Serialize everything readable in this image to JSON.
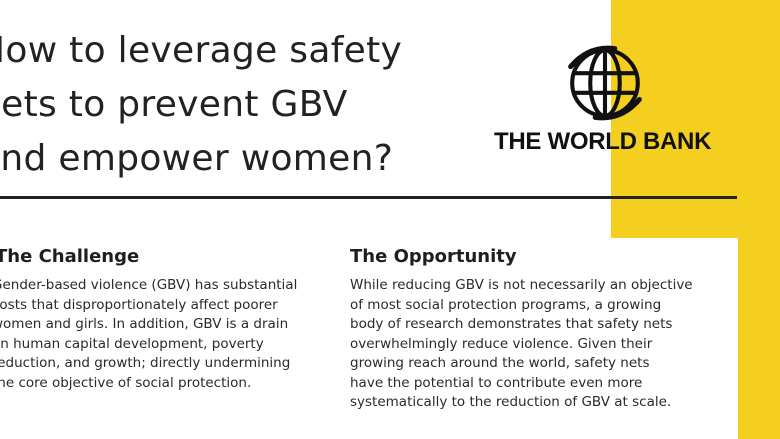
{
  "title_lines": [
    "How to leverage safety",
    "nets to prevent GBV",
    "and empower women?"
  ],
  "logo": {
    "text": "THE WORLD BANK",
    "icon": "globe-icon"
  },
  "challenge": {
    "heading": "The Challenge",
    "lines": [
      "Gender-based violence (GBV) has substantial",
      "costs that disproportionately affect poorer",
      "women and girls. In addition, GBV is a drain",
      "on human capital development, poverty",
      "reduction, and growth; directly undermining",
      "the core objective of social protection."
    ]
  },
  "opportunity": {
    "heading": "The Opportunity",
    "lines": [
      "While reducing GBV is not necessarily an objective",
      "of most social protection programs, a growing",
      "body of research demonstrates that safety nets",
      "overwhelmingly reduce  violence. Given their",
      "growing reach around the world, safety nets",
      "have the potential to contribute even more",
      "systematically to the reduction of GBV at scale."
    ]
  },
  "colors": {
    "accent": "#f4cf1f",
    "text": "#222222"
  }
}
